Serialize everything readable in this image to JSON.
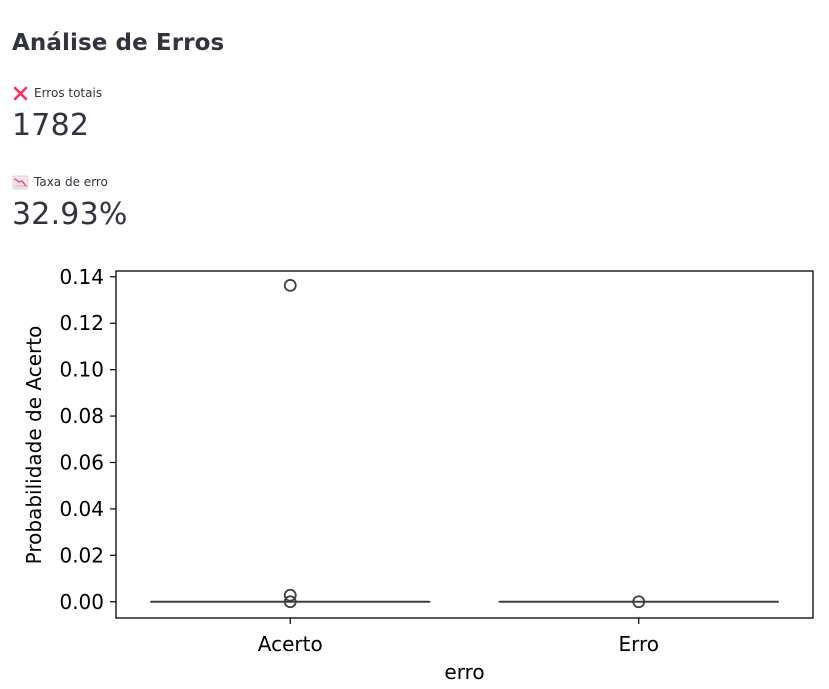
{
  "page": {
    "title": "Análise de Erros"
  },
  "metrics": [
    {
      "label": "Erros totais",
      "value": "1782",
      "icon": "cross-icon",
      "icon_color": "#ff2b5e"
    },
    {
      "label": "Taxa de erro",
      "value": "32.93%",
      "icon": "chart-decreasing-icon",
      "icon_color": "#e05a7a"
    }
  ],
  "chart_data": {
    "type": "box",
    "categories": [
      "Acerto",
      "Erro"
    ],
    "xlabel": "erro",
    "ylabel": "Probabilidade de Acerto",
    "ylim": [
      -0.007,
      0.1425
    ],
    "yticks": [
      0.0,
      0.02,
      0.04,
      0.06,
      0.08,
      0.1,
      0.12,
      0.14
    ],
    "ytick_labels": [
      "0.00",
      "0.02",
      "0.04",
      "0.06",
      "0.08",
      "0.10",
      "0.12",
      "0.14"
    ],
    "boxes": [
      {
        "category": "Acerto",
        "median": 0.0,
        "q1": 0.0,
        "q3": 0.0,
        "whisker_low": 0.0,
        "whisker_high": 0.0,
        "outliers": [
          0.1363,
          0.0028,
          0.0
        ]
      },
      {
        "category": "Erro",
        "median": 0.0,
        "q1": 0.0,
        "q3": 0.0,
        "whisker_low": 0.0,
        "whisker_high": 0.0,
        "outliers": [
          0.0
        ]
      }
    ],
    "grid": false,
    "line_color": "#3f3f3f"
  }
}
